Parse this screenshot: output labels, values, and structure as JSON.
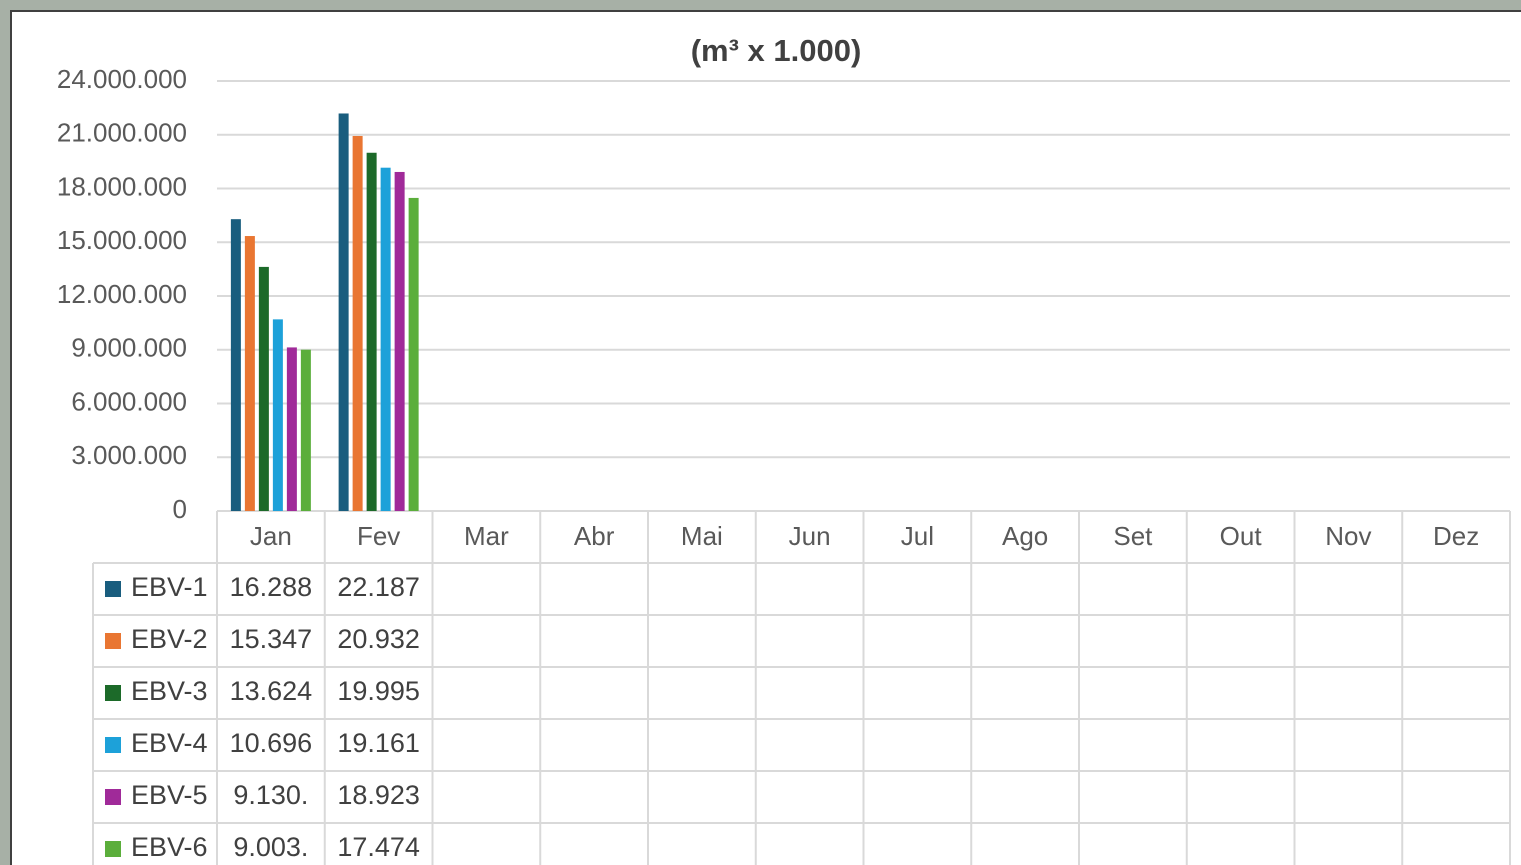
{
  "chart_data": {
    "type": "bar",
    "title": "(m³ x 1.000)",
    "categories": [
      "Jan",
      "Fev",
      "Mar",
      "Abr",
      "Mai",
      "Jun",
      "Jul",
      "Ago",
      "Set",
      "Out",
      "Nov",
      "Dez"
    ],
    "series": [
      {
        "name": "EBV-1",
        "color": "#195d7e",
        "values": [
          16288000,
          22187000,
          null,
          null,
          null,
          null,
          null,
          null,
          null,
          null,
          null,
          null
        ],
        "value_labels": [
          "16.288",
          "22.187",
          null,
          null,
          null,
          null,
          null,
          null,
          null,
          null,
          null,
          null
        ]
      },
      {
        "name": "EBV-2",
        "color": "#e97632",
        "values": [
          15347000,
          20932000,
          null,
          null,
          null,
          null,
          null,
          null,
          null,
          null,
          null,
          null
        ],
        "value_labels": [
          "15.347",
          "20.932",
          null,
          null,
          null,
          null,
          null,
          null,
          null,
          null,
          null,
          null
        ]
      },
      {
        "name": "EBV-3",
        "color": "#1c6a29",
        "values": [
          13624000,
          19995000,
          null,
          null,
          null,
          null,
          null,
          null,
          null,
          null,
          null,
          null
        ],
        "value_labels": [
          "13.624",
          "19.995",
          null,
          null,
          null,
          null,
          null,
          null,
          null,
          null,
          null,
          null
        ]
      },
      {
        "name": "EBV-4",
        "color": "#1da1d9",
        "values": [
          10696000,
          19161000,
          null,
          null,
          null,
          null,
          null,
          null,
          null,
          null,
          null,
          null
        ],
        "value_labels": [
          "10.696",
          "19.161",
          null,
          null,
          null,
          null,
          null,
          null,
          null,
          null,
          null,
          null
        ]
      },
      {
        "name": "EBV-5",
        "color": "#a02a99",
        "values": [
          9130000,
          18923000,
          null,
          null,
          null,
          null,
          null,
          null,
          null,
          null,
          null,
          null
        ],
        "value_labels": [
          "9.130.",
          "18.923",
          null,
          null,
          null,
          null,
          null,
          null,
          null,
          null,
          null,
          null
        ]
      },
      {
        "name": "EBV-6",
        "color": "#5bae3b",
        "values": [
          9003000,
          17474000,
          null,
          null,
          null,
          null,
          null,
          null,
          null,
          null,
          null,
          null
        ],
        "value_labels": [
          "9.003.",
          "17.474",
          null,
          null,
          null,
          null,
          null,
          null,
          null,
          null,
          null,
          null
        ]
      }
    ],
    "ylim": [
      0,
      24000000
    ],
    "yticks": [
      0,
      {
        "value": 3000000,
        "label": "3.000.000"
      },
      {
        "value": 6000000,
        "label": "6.000.000"
      },
      {
        "value": 9000000,
        "label": "9.000.000"
      },
      {
        "value": 12000000,
        "label": "12.000.000"
      },
      {
        "value": 15000000,
        "label": "15.000.000"
      },
      {
        "value": 18000000,
        "label": "18.000.000"
      },
      {
        "value": 21000000,
        "label": "21.000.000"
      },
      {
        "value": 24000000,
        "label": "24.000.000"
      }
    ],
    "grid": true
  }
}
